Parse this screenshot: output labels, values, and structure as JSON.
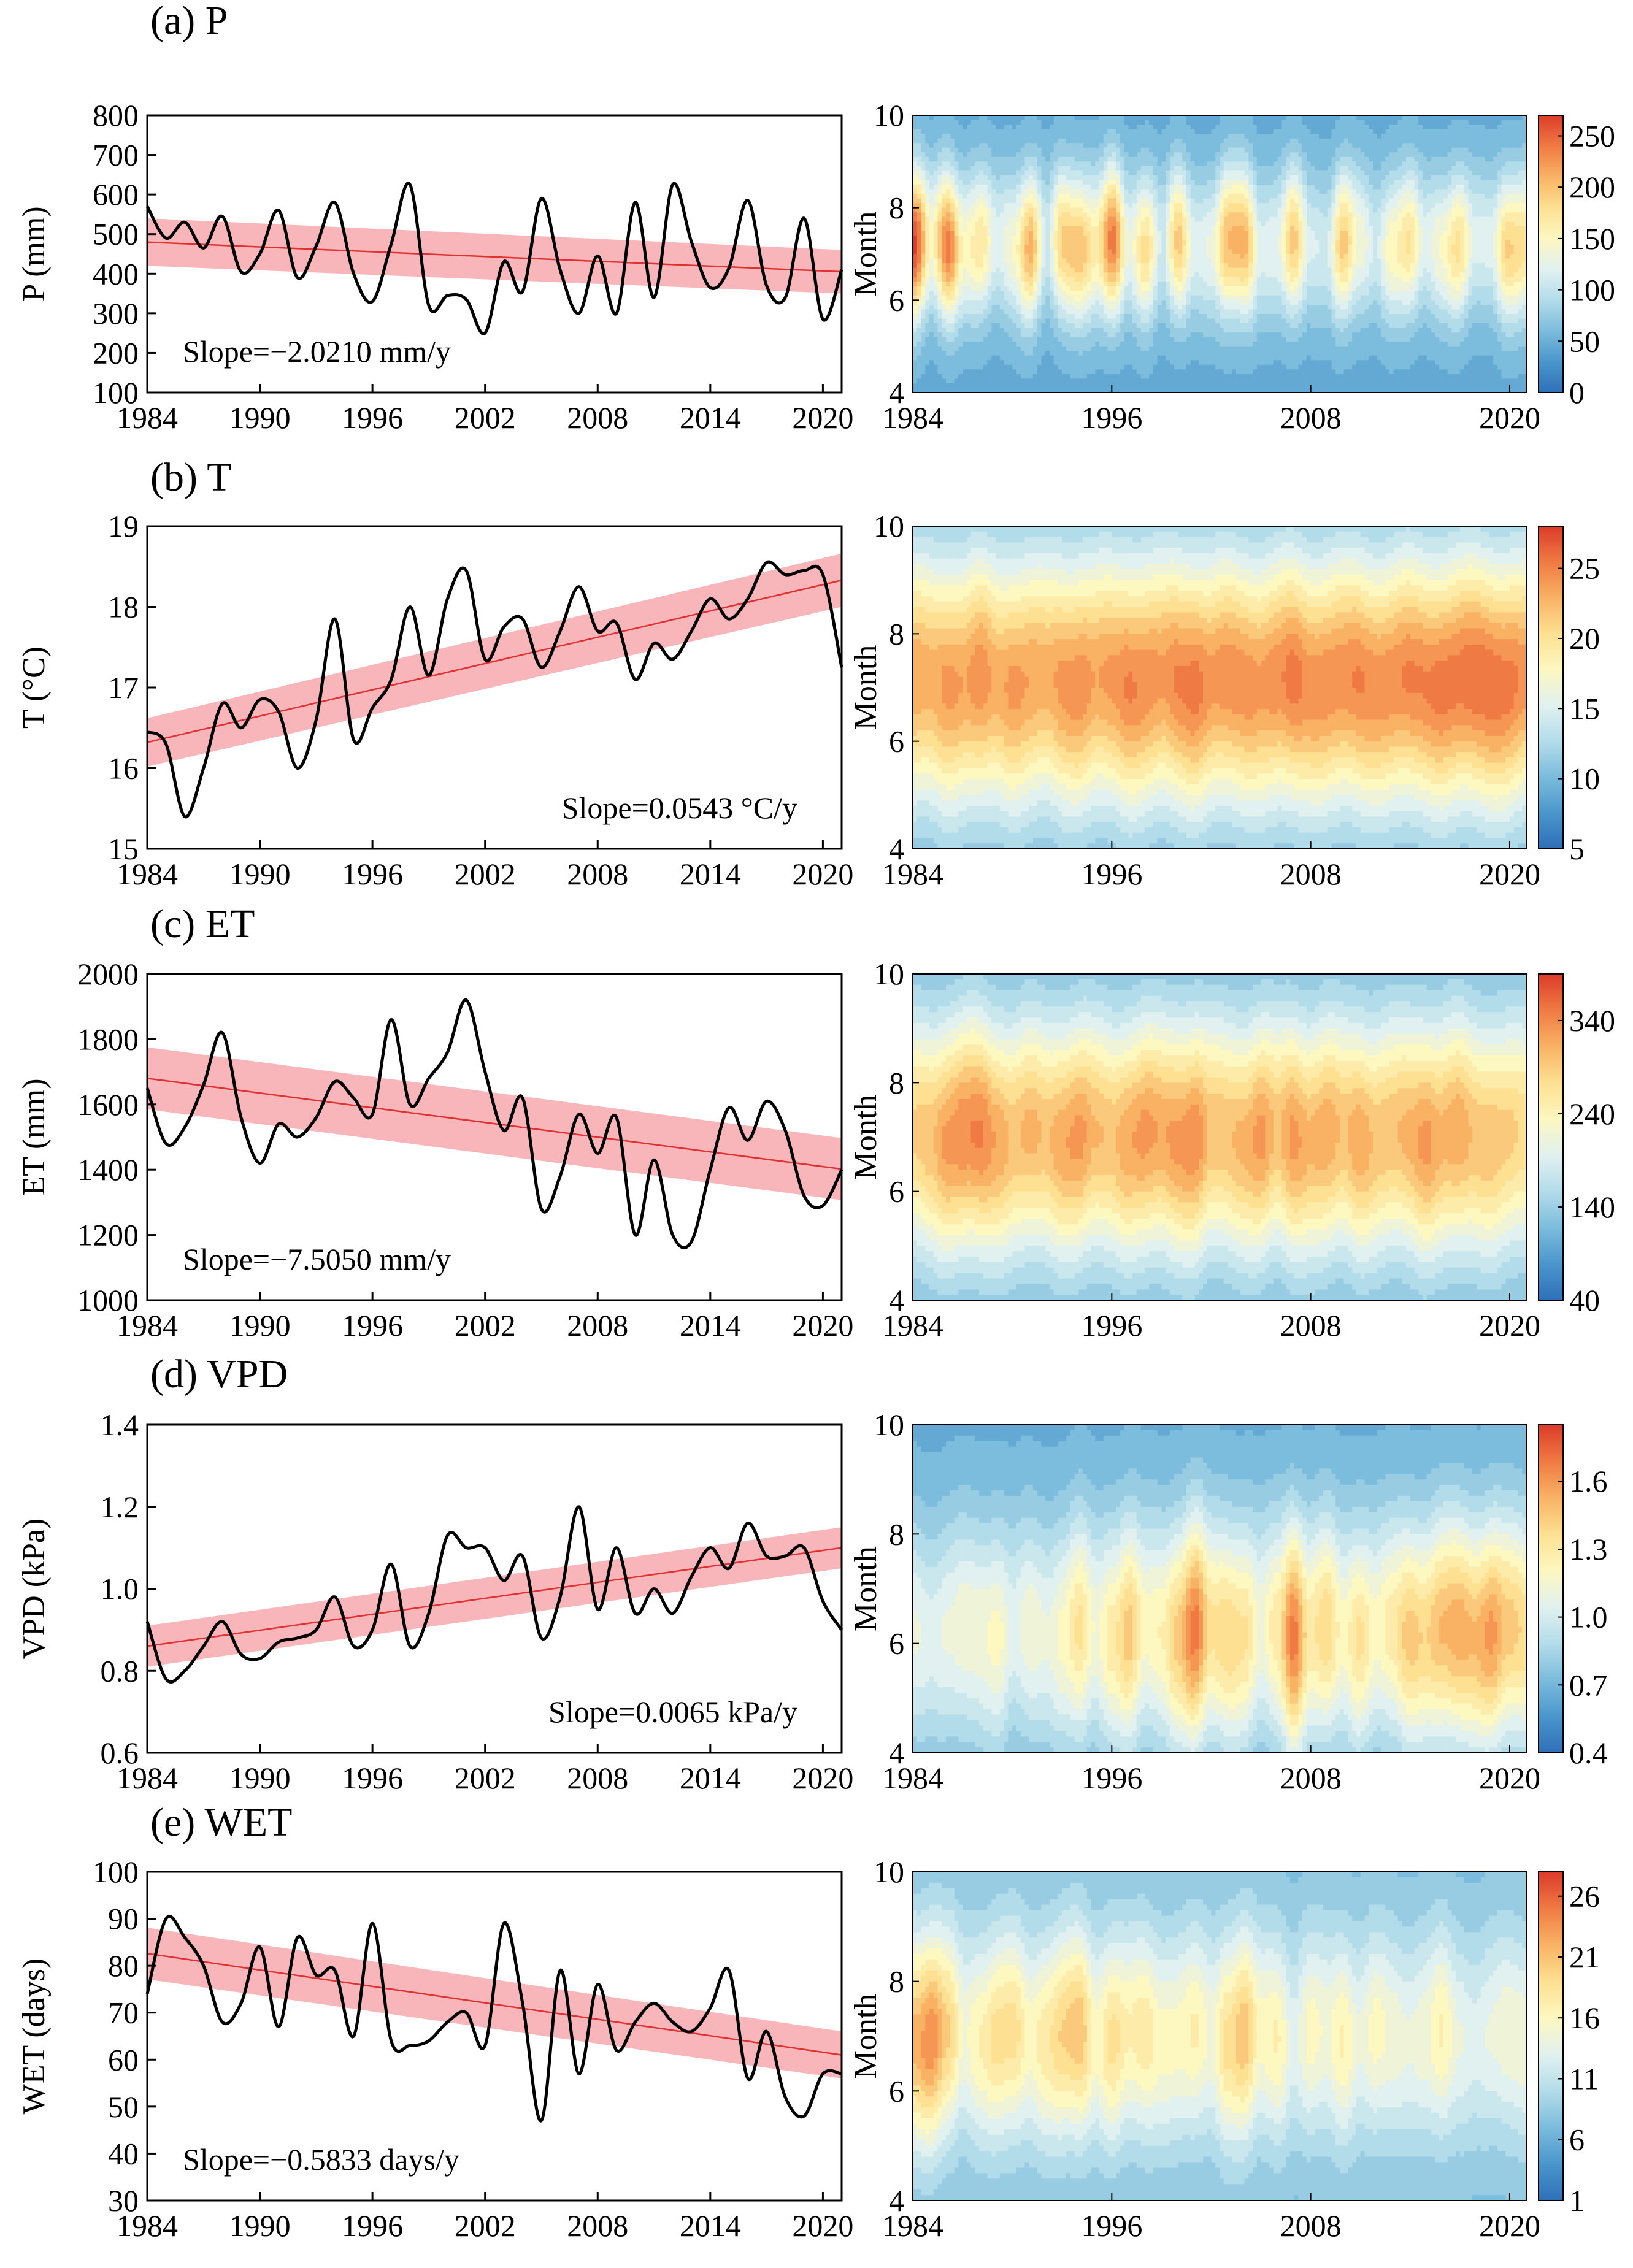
{
  "colors": {
    "curve": "#000000",
    "trend_line": "#e03030",
    "trend_band": "#f7a8ae",
    "colormap": [
      "#2f6fb8",
      "#4a96cc",
      "#7cbcdc",
      "#b3dcea",
      "#e1f1f0",
      "#fdf7c0",
      "#fde091",
      "#f9b264",
      "#f07a43",
      "#dc3b2a"
    ]
  },
  "chart_data": [
    {
      "type": "line",
      "panel": "(a) P",
      "ylabel": "P (mm)",
      "yticks": [
        "100",
        "200",
        "300",
        "400",
        "500",
        "600",
        "700",
        "800"
      ],
      "ylim": [
        100,
        800
      ],
      "xticks": [
        "1984",
        "1990",
        "1996",
        "2002",
        "2008",
        "2014",
        "2020"
      ],
      "xlim": [
        1984,
        2021
      ],
      "x": [
        1984,
        1985,
        1986,
        1987,
        1988,
        1989,
        1990,
        1991,
        1992,
        1993,
        1994,
        1995,
        1996,
        1997,
        1998,
        1999,
        2000,
        2001,
        2002,
        2003,
        2004,
        2005,
        2006,
        2007,
        2008,
        2009,
        2010,
        2011,
        2012,
        2013,
        2014,
        2015,
        2016,
        2017,
        2018,
        2019,
        2020,
        2021
      ],
      "values": [
        570,
        490,
        530,
        465,
        545,
        405,
        450,
        560,
        390,
        470,
        580,
        400,
        330,
        475,
        625,
        320,
        345,
        335,
        250,
        430,
        355,
        590,
        410,
        300,
        445,
        300,
        580,
        340,
        625,
        480,
        365,
        415,
        585,
        370,
        340,
        540,
        285,
        410
      ],
      "trend": {
        "start": 479.8,
        "end": 405.0,
        "band_start": 60,
        "band_end": 55
      },
      "slope_label": "Slope=−2.0210 mm/y",
      "heatmap": {
        "ylabel": "Month",
        "yticks": [
          "4",
          "6",
          "8",
          "10"
        ],
        "xticks": [
          "1984",
          "1996",
          "2008",
          "2020"
        ],
        "colorbar_ticks": [
          "0",
          "50",
          "100",
          "150",
          "200",
          "250"
        ],
        "cmin": 0,
        "cmax": 270,
        "peak_month": 7.2,
        "base": 45,
        "month_width": 1.15,
        "peaks": [
          265,
          150,
          240,
          150,
          170,
          120,
          145,
          210,
          110,
          195,
          200,
          165,
          240,
          130,
          180,
          110,
          195,
          120,
          130,
          205,
          210,
          120,
          125,
          195,
          115,
          110,
          195,
          140,
          110,
          155,
          175,
          120,
          145,
          180,
          120,
          120,
          190,
          180
        ]
      }
    },
    {
      "type": "line",
      "panel": "(b) T",
      "ylabel": "T (°C)",
      "yticks": [
        "15",
        "16",
        "17",
        "18",
        "19"
      ],
      "ylim": [
        15,
        19
      ],
      "xticks": [
        "1984",
        "1990",
        "1996",
        "2002",
        "2008",
        "2014",
        "2020"
      ],
      "xlim": [
        1984,
        2021
      ],
      "x": [
        1984,
        1985,
        1986,
        1987,
        1988,
        1989,
        1990,
        1991,
        1992,
        1993,
        1994,
        1995,
        1996,
        1997,
        1998,
        1999,
        2000,
        2001,
        2002,
        2003,
        2004,
        2005,
        2006,
        2007,
        2008,
        2009,
        2010,
        2011,
        2012,
        2013,
        2014,
        2015,
        2016,
        2017,
        2018,
        2019,
        2020,
        2021
      ],
      "values": [
        16.45,
        16.3,
        15.4,
        16.0,
        16.8,
        16.5,
        16.85,
        16.7,
        16.0,
        16.6,
        17.85,
        16.35,
        16.75,
        17.1,
        18.0,
        17.15,
        18.1,
        18.45,
        17.35,
        17.75,
        17.85,
        17.25,
        17.7,
        18.25,
        17.7,
        17.8,
        17.1,
        17.55,
        17.35,
        17.7,
        18.1,
        17.85,
        18.1,
        18.55,
        18.4,
        18.45,
        18.4,
        17.25
      ],
      "trend": {
        "start": 16.32,
        "end": 18.33,
        "band_start": 0.3,
        "band_end": 0.33
      },
      "slope_label": "Slope=0.0543 °C/y",
      "heatmap": {
        "ylabel": "Month",
        "yticks": [
          "4",
          "6",
          "8",
          "10"
        ],
        "xticks": [
          "1984",
          "1996",
          "2008",
          "2020"
        ],
        "colorbar_ticks": [
          "5",
          "10",
          "15",
          "20",
          "25"
        ],
        "cmin": 5,
        "cmax": 28,
        "peak_month": 7.1,
        "base": 9,
        "month_width": 1.7,
        "peaks": [
          23.5,
          23,
          24,
          23.5,
          24.5,
          23,
          24,
          23.5,
          23,
          24,
          24.5,
          23.5,
          24,
          25,
          24.5,
          24,
          25,
          25.5,
          24,
          24.5,
          24.5,
          24,
          24.5,
          25.5,
          24.5,
          24.5,
          24.5,
          25,
          24.5,
          24.5,
          25,
          25,
          25.5,
          25.5,
          26,
          26,
          25.5,
          24.5
        ]
      }
    },
    {
      "type": "line",
      "panel": "(c) ET",
      "ylabel": "ET (mm)",
      "yticks": [
        "1000",
        "1200",
        "1400",
        "1600",
        "1800",
        "2000"
      ],
      "ylim": [
        1000,
        2000
      ],
      "xticks": [
        "1984",
        "1990",
        "1996",
        "2002",
        "2008",
        "2014",
        "2020"
      ],
      "xlim": [
        1984,
        2021
      ],
      "x": [
        1984,
        1985,
        1986,
        1987,
        1988,
        1989,
        1990,
        1991,
        1992,
        1993,
        1994,
        1995,
        1996,
        1997,
        1998,
        1999,
        2000,
        2001,
        2002,
        2003,
        2004,
        2005,
        2006,
        2007,
        2008,
        2009,
        2010,
        2011,
        2012,
        2013,
        2014,
        2015,
        2016,
        2017,
        2018,
        2019,
        2020,
        2021
      ],
      "values": [
        1650,
        1480,
        1530,
        1660,
        1820,
        1560,
        1420,
        1540,
        1500,
        1560,
        1670,
        1620,
        1570,
        1860,
        1600,
        1680,
        1760,
        1920,
        1700,
        1520,
        1620,
        1280,
        1380,
        1570,
        1450,
        1560,
        1200,
        1430,
        1200,
        1180,
        1400,
        1590,
        1490,
        1610,
        1520,
        1320,
        1290,
        1400
      ],
      "trend": {
        "start": 1680,
        "end": 1402,
        "band_start": 95,
        "band_end": 95
      },
      "slope_label": "Slope=−7.5050 mm/y",
      "heatmap": {
        "ylabel": "Month",
        "yticks": [
          "4",
          "6",
          "8",
          "10"
        ],
        "xticks": [
          "1984",
          "1996",
          "2008",
          "2020"
        ],
        "colorbar_ticks": [
          "40",
          "140",
          "240",
          "340"
        ],
        "cmin": 40,
        "cmax": 390,
        "peak_month": 7.0,
        "base": 100,
        "month_width": 1.6,
        "peaks": [
          290,
          300,
          330,
          340,
          345,
          320,
          300,
          310,
          300,
          320,
          330,
          305,
          300,
          320,
          330,
          320,
          330,
          340,
          300,
          300,
          310,
          330,
          300,
          330,
          310,
          320,
          300,
          320,
          300,
          300,
          310,
          330,
          310,
          320,
          300,
          300,
          290,
          280
        ]
      }
    },
    {
      "type": "line",
      "panel": "(d) VPD",
      "ylabel": "VPD (kPa)",
      "yticks": [
        "0.6",
        "0.8",
        "1.0",
        "1.2",
        "1.4"
      ],
      "ylim": [
        0.6,
        1.4
      ],
      "xticks": [
        "1984",
        "1990",
        "1996",
        "2002",
        "2008",
        "2014",
        "2020"
      ],
      "xlim": [
        1984,
        2021
      ],
      "x": [
        1984,
        1985,
        1986,
        1987,
        1988,
        1989,
        1990,
        1991,
        1992,
        1993,
        1994,
        1995,
        1996,
        1997,
        1998,
        1999,
        2000,
        2001,
        2002,
        2003,
        2004,
        2005,
        2006,
        2007,
        2008,
        2009,
        2010,
        2011,
        2012,
        2013,
        2014,
        2015,
        2016,
        2017,
        2018,
        2019,
        2020,
        2021
      ],
      "values": [
        0.92,
        0.78,
        0.8,
        0.86,
        0.92,
        0.84,
        0.83,
        0.87,
        0.88,
        0.9,
        0.98,
        0.86,
        0.9,
        1.06,
        0.86,
        0.94,
        1.13,
        1.1,
        1.1,
        1.02,
        1.08,
        0.88,
        0.98,
        1.2,
        0.95,
        1.1,
        0.94,
        1.0,
        0.94,
        1.03,
        1.1,
        1.05,
        1.16,
        1.08,
        1.08,
        1.1,
        0.97,
        0.9
      ],
      "trend": {
        "start": 0.86,
        "end": 1.1,
        "band_start": 0.05,
        "band_end": 0.05
      },
      "slope_label": "Slope=0.0065 kPa/y",
      "heatmap": {
        "ylabel": "Month",
        "yticks": [
          "4",
          "6",
          "8",
          "10"
        ],
        "xticks": [
          "1984",
          "1996",
          "2008",
          "2020"
        ],
        "colorbar_ticks": [
          "0.4",
          "0.7",
          "1.0",
          "1.3",
          "1.6"
        ],
        "cmin": 0.4,
        "cmax": 1.85,
        "peak_month": 6.2,
        "base": 0.65,
        "month_width": 1.5,
        "peaks": [
          1.1,
          1.05,
          1.1,
          1.15,
          1.15,
          1.2,
          1.05,
          1.15,
          1.1,
          1.2,
          1.35,
          1.15,
          1.3,
          1.45,
          1.2,
          1.25,
          1.45,
          1.7,
          1.35,
          1.4,
          1.35,
          1.15,
          1.3,
          1.7,
          1.3,
          1.4,
          1.2,
          1.35,
          1.2,
          1.3,
          1.45,
          1.4,
          1.5,
          1.55,
          1.5,
          1.6,
          1.45,
          1.4
        ]
      }
    },
    {
      "type": "line",
      "panel": "(e) WET",
      "ylabel": "WET (days)",
      "yticks": [
        "30",
        "40",
        "50",
        "60",
        "70",
        "80",
        "90",
        "100"
      ],
      "ylim": [
        30,
        100
      ],
      "xticks": [
        "1984",
        "1990",
        "1996",
        "2002",
        "2008",
        "2014",
        "2020"
      ],
      "xlim": [
        1984,
        2021
      ],
      "x": [
        1984,
        1985,
        1986,
        1987,
        1988,
        1989,
        1990,
        1991,
        1992,
        1993,
        1994,
        1995,
        1996,
        1997,
        1998,
        1999,
        2000,
        2001,
        2002,
        2003,
        2004,
        2005,
        2006,
        2007,
        2008,
        2009,
        2010,
        2011,
        2012,
        2013,
        2014,
        2015,
        2016,
        2017,
        2018,
        2019,
        2020,
        2021
      ],
      "values": [
        74,
        90,
        86,
        80,
        68,
        72,
        84,
        67,
        86,
        78,
        79,
        65,
        89,
        64,
        63,
        64,
        68,
        70,
        63,
        89,
        72,
        47,
        79,
        57,
        76,
        62,
        68,
        72,
        68,
        66,
        71,
        79,
        56,
        66,
        52,
        48,
        57,
        57
      ],
      "trend": {
        "start": 82.6,
        "end": 61.0,
        "band_start": 5.5,
        "band_end": 5.0
      },
      "slope_label": "Slope=−0.5833 days/y",
      "heatmap": {
        "ylabel": "Month",
        "yticks": [
          "4",
          "6",
          "8",
          "10"
        ],
        "xticks": [
          "1984",
          "1996",
          "2008",
          "2020"
        ],
        "colorbar_ticks": [
          "1",
          "6",
          "11",
          "16",
          "21",
          "26"
        ],
        "cmin": 1,
        "cmax": 28,
        "peak_month": 7.0,
        "base": 7,
        "month_width": 1.4,
        "peaks": [
          22,
          24,
          20,
          15,
          17,
          19,
          19,
          16,
          18,
          20,
          21,
          16,
          19,
          17,
          18,
          16,
          16,
          17,
          15,
          19,
          21,
          16,
          17,
          13,
          16,
          15,
          17,
          14,
          16,
          15,
          14,
          15,
          17,
          14,
          13,
          14,
          15,
          15
        ]
      }
    }
  ]
}
